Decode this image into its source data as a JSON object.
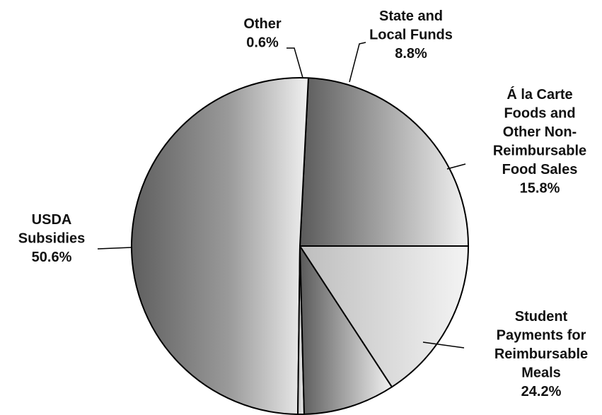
{
  "chart_data": {
    "type": "pie",
    "start_angle_deg": 0,
    "direction": "counterclockwise",
    "slices": [
      {
        "lines": [
          "Student",
          "Payments for",
          "Reimbursable",
          "Meals"
        ],
        "percent_label": "24.2%",
        "value": 24.2,
        "shade": "dark-to-light"
      },
      {
        "lines": [
          "USDA",
          "Subsidies"
        ],
        "percent_label": "50.6%",
        "value": 50.6,
        "shade": "dark-to-light"
      },
      {
        "lines": [
          "Other"
        ],
        "percent_label": "0.6%",
        "value": 0.6,
        "shade": "light"
      },
      {
        "lines": [
          "State and",
          "Local Funds"
        ],
        "percent_label": "8.8%",
        "value": 8.8,
        "shade": "dark-to-light"
      },
      {
        "lines": [
          "Á la Carte",
          "Foods and",
          "Other Non-",
          "Reimbursable",
          "Food Sales"
        ],
        "percent_label": "15.8%",
        "value": 15.8,
        "shade": "light"
      }
    ]
  }
}
